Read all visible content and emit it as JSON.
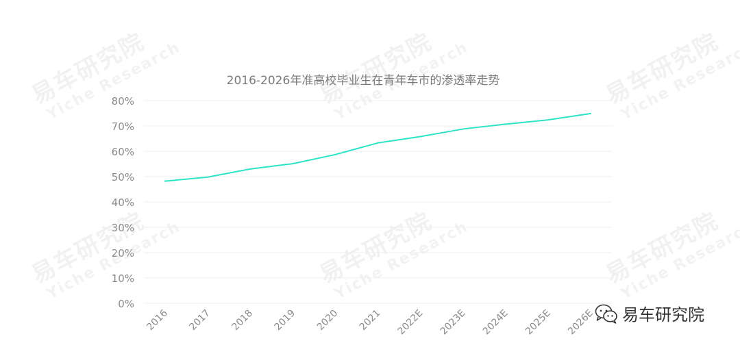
{
  "chart_data": {
    "type": "line",
    "title": "2016-2026年准高校毕业生在青年车市的渗透率走势",
    "xlabel": "",
    "ylabel": "",
    "categories": [
      "2016",
      "2017",
      "2018",
      "2019",
      "2020",
      "2021",
      "2022E",
      "2023E",
      "2024E",
      "2025E",
      "2026E"
    ],
    "series": [
      {
        "values": [
          0.482,
          0.498,
          0.53,
          0.551,
          0.587,
          0.633,
          0.658,
          0.688,
          0.707,
          0.724,
          0.749
        ]
      }
    ],
    "ylim": [
      0,
      0.8
    ],
    "yticks": [
      "0%",
      "10%",
      "20%",
      "30%",
      "40%",
      "50%",
      "60%",
      "70%",
      "80%"
    ],
    "grid": true,
    "legend": "none",
    "colors": {
      "line": "#2de3c7",
      "grid": "#efefef",
      "tick_text": "#8a8a8a",
      "title_text": "#7a7a7a"
    }
  },
  "watermark": {
    "cn": "易车研究院",
    "en": "Yiche Research"
  },
  "brand": {
    "icon": "wechat-icon",
    "label": "易车研究院"
  }
}
